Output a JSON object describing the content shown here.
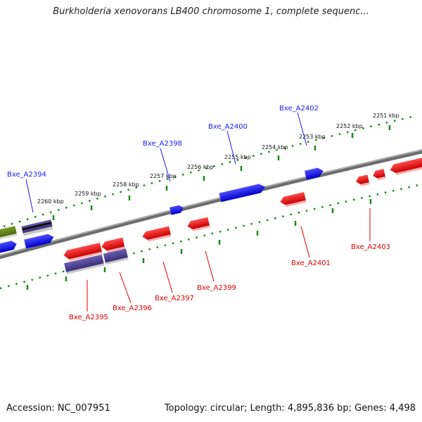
{
  "title": "Burkholderia xenovorans LB400 chromosome 1, complete sequenc...",
  "footer": {
    "accession": "Accession: NC_007951",
    "summary": "Topology: circular; Length: 4,895,836 bp; Genes: 4,498"
  },
  "ticks": [
    "2251 kbp",
    "2252 kbp",
    "2253 kbp",
    "2254 kbp",
    "2255 kbp",
    "2256 kbp",
    "2257 kbp",
    "2258 kbp",
    "2259 kbp",
    "2260 kbp"
  ],
  "genes_forward": [
    "Bxe_A2394",
    "Bxe_A2398",
    "Bxe_A2400",
    "Bxe_A2402"
  ],
  "genes_reverse": [
    "Bxe_A2395",
    "Bxe_A2396",
    "Bxe_A2397",
    "Bxe_A2399",
    "Bxe_A2401",
    "Bxe_A2403"
  ],
  "colors": {
    "forward_gene": "#0000ee",
    "reverse_gene": "#ee0000",
    "rna_feature": "#4a3f8f",
    "other_feature": "#5a7a1a",
    "backbone": "#888888",
    "tick": "#1a8a1a",
    "label_forward": "#1a1aff",
    "label_reverse": "#e00000"
  }
}
